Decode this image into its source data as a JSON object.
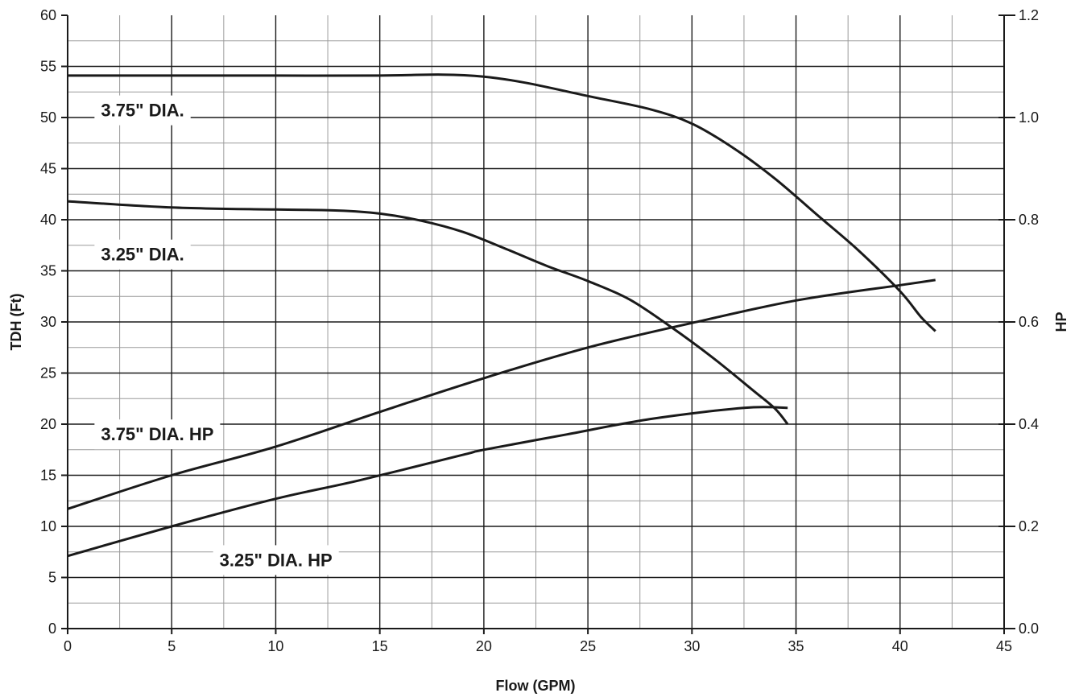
{
  "chart_data": {
    "type": "line",
    "title": "",
    "xlabel": "Flow (GPM)",
    "ylabel": "TDH (Ft)",
    "y2label": "HP",
    "xlim": [
      0,
      45
    ],
    "ylim": [
      0,
      60
    ],
    "y2lim": [
      0,
      1.2
    ],
    "x_ticks": [
      "0",
      "5",
      "10",
      "15",
      "20",
      "25",
      "30",
      "35",
      "40",
      "45"
    ],
    "y_ticks": [
      "0",
      "5",
      "10",
      "15",
      "20",
      "25",
      "30",
      "35",
      "40",
      "45",
      "50",
      "55",
      "60"
    ],
    "y2_ticks": [
      "0.0",
      "0.2",
      "0.4",
      "0.6",
      "0.8",
      "1.0",
      "1.2"
    ],
    "grid": true,
    "line_color": "#1a1a1a",
    "series": [
      {
        "name": "3.75\" DIA.",
        "axis": "left",
        "points": [
          [
            0,
            54.1
          ],
          [
            5,
            54.1
          ],
          [
            10,
            54.1
          ],
          [
            15,
            54.1
          ],
          [
            18,
            54.2
          ],
          [
            20,
            54.0
          ],
          [
            22,
            53.4
          ],
          [
            25,
            52.1
          ],
          [
            28,
            50.8
          ],
          [
            30,
            49.4
          ],
          [
            32,
            47.0
          ],
          [
            34,
            44.0
          ],
          [
            36,
            40.5
          ],
          [
            38,
            37.0
          ],
          [
            40,
            33.0
          ],
          [
            41,
            30.5
          ],
          [
            41.7,
            29.1
          ]
        ]
      },
      {
        "name": "3.25\" DIA.",
        "axis": "left",
        "points": [
          [
            0,
            41.8
          ],
          [
            5,
            41.2
          ],
          [
            10,
            41.0
          ],
          [
            13,
            40.9
          ],
          [
            15,
            40.6
          ],
          [
            17,
            39.9
          ],
          [
            19,
            38.8
          ],
          [
            21,
            37.2
          ],
          [
            23,
            35.5
          ],
          [
            25,
            34.0
          ],
          [
            27,
            32.2
          ],
          [
            29,
            29.5
          ],
          [
            31,
            26.5
          ],
          [
            33,
            23.2
          ],
          [
            34,
            21.5
          ],
          [
            34.6,
            20.0
          ]
        ]
      },
      {
        "name": "3.75\" DIA. HP",
        "axis": "right",
        "points": [
          [
            0,
            0.234
          ],
          [
            5,
            0.3
          ],
          [
            10,
            0.356
          ],
          [
            15,
            0.424
          ],
          [
            20,
            0.49
          ],
          [
            25,
            0.55
          ],
          [
            30,
            0.598
          ],
          [
            35,
            0.642
          ],
          [
            40,
            0.672
          ],
          [
            41.7,
            0.682
          ]
        ]
      },
      {
        "name": "3.25\" DIA. HP",
        "axis": "right",
        "points": [
          [
            0,
            0.142
          ],
          [
            5,
            0.2
          ],
          [
            10,
            0.254
          ],
          [
            14,
            0.29
          ],
          [
            19,
            0.34
          ],
          [
            20,
            0.35
          ],
          [
            24,
            0.38
          ],
          [
            28,
            0.41
          ],
          [
            32.5,
            0.432
          ],
          [
            34.6,
            0.432
          ]
        ]
      }
    ],
    "labels": [
      {
        "text": "3.75\" DIA.",
        "x": 1.6,
        "y": 50.7
      },
      {
        "text": "3.25\" DIA.",
        "x": 1.6,
        "y": 36.6
      },
      {
        "text": "3.75\" DIA. HP",
        "x": 1.6,
        "y": 19.0
      },
      {
        "text": "3.25\" DIA. HP",
        "x": 7.3,
        "y": 6.7
      }
    ]
  }
}
